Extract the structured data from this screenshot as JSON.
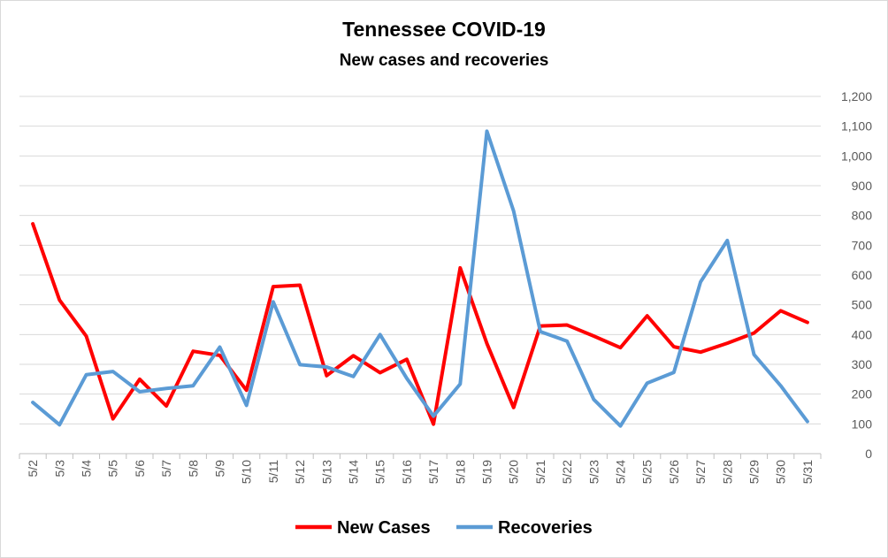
{
  "chart_data": {
    "type": "line",
    "title": "Tennessee COVID-19",
    "subtitle": "New cases and recoveries",
    "xlabel": "",
    "ylabel": "",
    "categories": [
      "5/2",
      "5/3",
      "5/4",
      "5/5",
      "5/6",
      "5/7",
      "5/8",
      "5/9",
      "5/10",
      "5/11",
      "5/12",
      "5/13",
      "5/14",
      "5/15",
      "5/16",
      "5/17",
      "5/18",
      "5/19",
      "5/20",
      "5/21",
      "5/22",
      "5/23",
      "5/24",
      "5/25",
      "5/26",
      "5/27",
      "5/28",
      "5/29",
      "5/30",
      "5/31"
    ],
    "series": [
      {
        "name": "New Cases",
        "color": "#ff0000",
        "values": [
          772,
          516,
          395,
          117,
          250,
          160,
          344,
          330,
          213,
          561,
          566,
          262,
          329,
          272,
          317,
          99,
          624,
          370,
          155,
          429,
          432,
          395,
          356,
          463,
          359,
          341,
          371,
          405,
          480,
          441
        ]
      },
      {
        "name": "Recoveries",
        "color": "#5b9bd5",
        "values": [
          172,
          97,
          265,
          276,
          208,
          219,
          228,
          358,
          162,
          510,
          299,
          291,
          259,
          400,
          253,
          126,
          234,
          1083,
          815,
          410,
          378,
          182,
          93,
          237,
          273,
          577,
          716,
          333,
          228,
          108
        ]
      }
    ],
    "ylim": [
      0,
      1200
    ],
    "y_ticks": [
      "0",
      "100",
      "200",
      "300",
      "400",
      "500",
      "600",
      "700",
      "800",
      "900",
      "1,000",
      "1,100",
      "1,200"
    ],
    "y_axis_side": "right",
    "grid": true,
    "legend": "bottom"
  }
}
